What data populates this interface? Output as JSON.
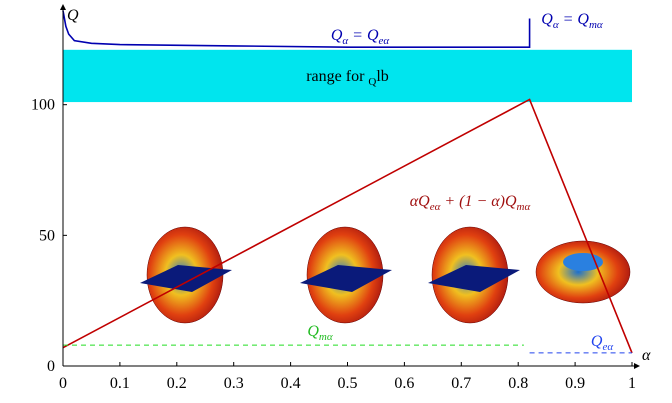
{
  "chart_data": {
    "type": "line",
    "xlabel": "α",
    "ylabel": "Q",
    "xlim": [
      0,
      1
    ],
    "ylim": [
      0,
      137
    ],
    "xticks": [
      0,
      0.1,
      0.2,
      0.3,
      0.4,
      0.5,
      0.6,
      0.7,
      0.8,
      0.9,
      1
    ],
    "yticks": [
      0,
      50,
      100
    ],
    "band": {
      "range": [
        101,
        121
      ],
      "color": "#00e5ee",
      "label": [
        "range for ",
        "Q",
        "lb"
      ]
    },
    "series": [
      {
        "color": "#0000b0",
        "dashed": false,
        "x": [
          0,
          0.005,
          0.01,
          0.02,
          0.05,
          0.1,
          0.3,
          0.5,
          0.7,
          0.82,
          0.82
        ],
        "values": [
          136,
          130,
          127,
          124.5,
          123.5,
          123,
          122.5,
          122,
          122,
          122,
          133
        ]
      },
      {
        "color": "#c00000",
        "dashed": false,
        "x": [
          0,
          0.82,
          1
        ],
        "values": [
          7,
          102,
          5
        ]
      },
      {
        "color": "#22dd22",
        "dashed": true,
        "x": [
          0,
          0.81
        ],
        "values": [
          8,
          8
        ]
      },
      {
        "color": "#2244ee",
        "dashed": true,
        "x": [
          0.82,
          1
        ],
        "values": [
          5,
          5
        ]
      }
    ],
    "annotations": [
      {
        "color": "#0000b0",
        "parts": [
          "Q",
          "α",
          " = Q",
          "eα"
        ]
      },
      {
        "color": "#0000b0",
        "parts": [
          "Q",
          "α",
          " = Q",
          "mα"
        ]
      },
      {
        "color": "#a01010",
        "parts": [
          "αQ",
          "eα",
          " + (1 − α)Q",
          "mα"
        ]
      },
      {
        "color": "#22bb22",
        "parts": [
          "Q",
          "mα"
        ]
      },
      {
        "color": "#2244ee",
        "parts": [
          "Q",
          "eα"
        ]
      }
    ]
  }
}
